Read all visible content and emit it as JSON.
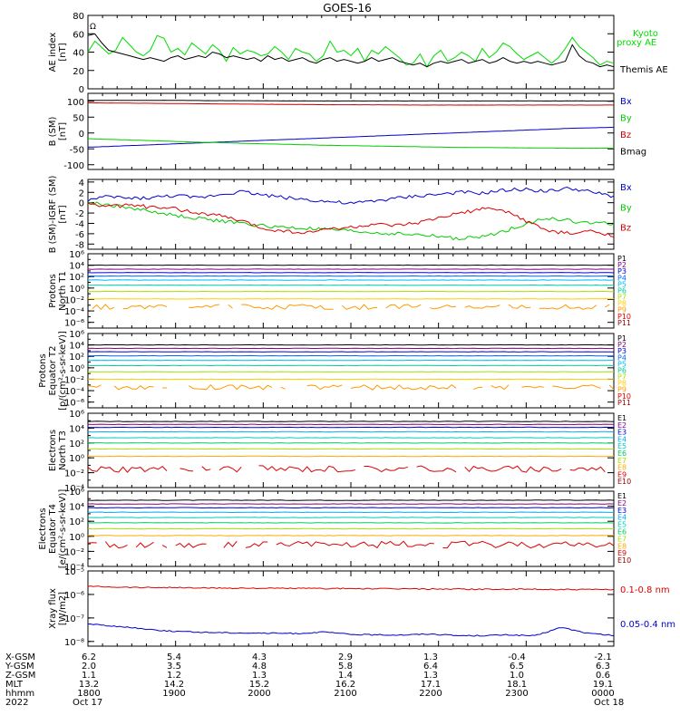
{
  "title": "GOES-16",
  "x_tick_labels": [
    "1800",
    "1900",
    "2000",
    "2100",
    "2200",
    "2300",
    "0000"
  ],
  "orbit_table": {
    "rows": [
      {
        "label": "X-GSM",
        "values": [
          "6.2",
          "5.4",
          "4.3",
          "2.9",
          "1.3",
          "-0.4",
          "-2.1"
        ]
      },
      {
        "label": "Y-GSM",
        "values": [
          "2.0",
          "3.5",
          "4.8",
          "5.8",
          "6.4",
          "6.5",
          "6.3"
        ]
      },
      {
        "label": "Z-GSM",
        "values": [
          "1.1",
          "1.2",
          "1.3",
          "1.4",
          "1.3",
          "1.0",
          "0.6"
        ]
      },
      {
        "label": "MLT",
        "values": [
          "13.2",
          "14.2",
          "15.2",
          "16.2",
          "17.1",
          "18.1",
          "19.1"
        ]
      },
      {
        "label": "hhmm",
        "values": [
          "1800",
          "1900",
          "2000",
          "2100",
          "2200",
          "2300",
          "0000"
        ]
      }
    ],
    "year": "2022",
    "start_date": "Oct 17",
    "end_date": "Oct 18"
  },
  "chart_data": [
    {
      "type": "line",
      "title": "GOES-16",
      "ylabel": "AE index [nT]",
      "ylim": [
        0,
        80
      ],
      "yticks": [
        "0",
        "20",
        "40",
        "60",
        "80"
      ],
      "extra_label": "Ω",
      "series": [
        {
          "name": "Kyoto proxy AE",
          "color": "#00dd00",
          "values": [
            40,
            52,
            45,
            38,
            42,
            56,
            48,
            40,
            36,
            42,
            58,
            55,
            40,
            44,
            37,
            50,
            44,
            38,
            48,
            42,
            30,
            45,
            38,
            42,
            40,
            36,
            38,
            46,
            40,
            32,
            44,
            40,
            38,
            30,
            36,
            52,
            40,
            42,
            36,
            44,
            30,
            42,
            38,
            46,
            40,
            34,
            26,
            28,
            38,
            24,
            36,
            42,
            30,
            34,
            40,
            36,
            30,
            44,
            34,
            40,
            50,
            46,
            38,
            32,
            36,
            40,
            34,
            28,
            34,
            44,
            56,
            46,
            40,
            34,
            26,
            30,
            28
          ]
        },
        {
          "name": "Themis AE",
          "color": "#000000",
          "values": [
            58,
            60,
            50,
            42,
            40,
            38,
            36,
            34,
            32,
            34,
            32,
            30,
            34,
            36,
            32,
            34,
            36,
            34,
            40,
            38,
            34,
            36,
            34,
            32,
            34,
            30,
            36,
            32,
            34,
            30,
            32,
            34,
            30,
            28,
            32,
            34,
            30,
            32,
            30,
            28,
            30,
            34,
            30,
            32,
            34,
            30,
            28,
            26,
            28,
            24,
            28,
            30,
            28,
            30,
            32,
            28,
            30,
            32,
            28,
            30,
            34,
            30,
            28,
            30,
            28,
            30,
            28,
            26,
            28,
            30,
            48,
            36,
            30,
            28,
            24,
            26,
            24
          ]
        }
      ]
    },
    {
      "type": "line",
      "ylabel": "B (SM) [nT]",
      "ylim": [
        -115,
        125
      ],
      "yticks": [
        "-100",
        "-50",
        "0",
        "50",
        "100"
      ],
      "series": [
        {
          "name": "Bx",
          "color": "#0000cc",
          "values": [
            -45,
            -40,
            -35,
            -30,
            -25,
            -20,
            -15,
            -10,
            -5,
            0,
            5,
            10,
            15,
            18
          ]
        },
        {
          "name": "By",
          "color": "#00cc00",
          "values": [
            -18,
            -22,
            -26,
            -30,
            -33,
            -36,
            -39,
            -41,
            -43,
            -45,
            -46,
            -47,
            -48,
            -48
          ]
        },
        {
          "name": "Bz",
          "color": "#cc0000",
          "values": [
            95,
            94,
            93,
            92,
            91,
            90,
            89,
            89,
            88,
            88,
            88,
            88,
            88,
            88
          ]
        },
        {
          "name": "Bmag",
          "color": "#000000",
          "values": [
            103,
            103,
            103,
            102,
            102,
            101,
            101,
            101,
            101,
            101,
            101,
            101,
            101,
            101
          ]
        }
      ]
    },
    {
      "type": "line",
      "ylabel": "B (SM)-IGRF (SM) [nT]",
      "ylim": [
        -9,
        4.5
      ],
      "yticks": [
        "-8",
        "-6",
        "-4",
        "-2",
        "0",
        "2",
        "4"
      ],
      "series": [
        {
          "name": "Bx",
          "color": "#0000cc",
          "values": [
            0.5,
            1.2,
            0.8,
            1.0,
            1.4,
            0.9,
            1.6,
            2.2,
            1.5,
            1.0,
            0.6,
            0.2,
            -0.2,
            0.3,
            0.8,
            1.3,
            1.6,
            2.0,
            1.8,
            2.4,
            2.6,
            2.2,
            2.8,
            2.0,
            1.2
          ]
        },
        {
          "name": "By",
          "color": "#00cc00",
          "values": [
            0.0,
            -0.5,
            -1.0,
            -1.8,
            -2.5,
            -3.0,
            -3.5,
            -4.0,
            -4.5,
            -4.8,
            -5.0,
            -5.2,
            -5.5,
            -5.8,
            -6.0,
            -6.2,
            -6.5,
            -7.0,
            -6.6,
            -5.5,
            -4.0,
            -3.0,
            -3.5,
            -4.0,
            -4.0
          ]
        },
        {
          "name": "Bz",
          "color": "#dd0000",
          "values": [
            -0.2,
            -0.8,
            -0.4,
            -1.0,
            -1.2,
            -2.0,
            -2.5,
            -3.5,
            -5.0,
            -5.5,
            -5.8,
            -5.0,
            -4.8,
            -4.2,
            -4.5,
            -4.0,
            -3.0,
            -2.0,
            -1.2,
            -1.5,
            -3.5,
            -5.5,
            -6.0,
            -5.5,
            -6.3
          ]
        }
      ]
    },
    {
      "type": "line",
      "ylabel": "Protons North T1",
      "log_scale": true,
      "ylim_exp": [
        -7,
        6
      ],
      "tick_exps": [
        -6,
        -4,
        -2,
        0,
        2,
        4,
        6
      ],
      "channels": [
        {
          "name": "P1",
          "color": "#000000",
          "log_value": 4.0
        },
        {
          "name": "P2",
          "color": "#880088",
          "log_value": 3.3
        },
        {
          "name": "P3",
          "color": "#0000cc",
          "log_value": 2.7
        },
        {
          "name": "P4",
          "color": "#0066ff",
          "log_value": 2.1
        },
        {
          "name": "P5",
          "color": "#00bbee",
          "log_value": 1.4
        },
        {
          "name": "P6",
          "color": "#00cc99",
          "log_value": 0.5
        },
        {
          "name": "P7",
          "color": "#aadd00",
          "log_value": -0.6
        },
        {
          "name": "P8",
          "color": "#ffcc00",
          "log_value": -1.9
        },
        {
          "name": "P9",
          "color": "#ff9900",
          "log_value": -3.3,
          "noisy": true
        },
        {
          "name": "P10",
          "color": "#dd0000",
          "log_value": null
        },
        {
          "name": "P11",
          "color": "#aa0000",
          "log_value": null
        }
      ]
    },
    {
      "type": "line",
      "ylabel": "Protons Equator T2 [p/(cm²-s-sr-keV)]",
      "log_scale": true,
      "ylim_exp": [
        -7,
        6
      ],
      "tick_exps": [
        -6,
        -4,
        -2,
        0,
        2,
        4,
        6
      ],
      "channels": [
        {
          "name": "P1",
          "color": "#000000",
          "log_value": 4.0
        },
        {
          "name": "P2",
          "color": "#880088",
          "log_value": 3.4
        },
        {
          "name": "P3",
          "color": "#0000cc",
          "log_value": 2.8
        },
        {
          "name": "P4",
          "color": "#0066ff",
          "log_value": 2.1
        },
        {
          "name": "P5",
          "color": "#00bbee",
          "log_value": 1.3
        },
        {
          "name": "P6",
          "color": "#00cc99",
          "log_value": 0.4
        },
        {
          "name": "P7",
          "color": "#aadd00",
          "log_value": -0.7
        },
        {
          "name": "P8",
          "color": "#ffcc00",
          "log_value": -2.0
        },
        {
          "name": "P9",
          "color": "#ff9900",
          "log_value": -3.4,
          "noisy": true
        },
        {
          "name": "P10",
          "color": "#dd0000",
          "log_value": null
        },
        {
          "name": "P11",
          "color": "#aa0000",
          "log_value": null
        }
      ]
    },
    {
      "type": "line",
      "ylabel": "Electrons North T3",
      "log_scale": true,
      "ylim_exp": [
        -4,
        6
      ],
      "tick_exps": [
        -4,
        -2,
        0,
        2,
        4,
        6
      ],
      "channels": [
        {
          "name": "E1",
          "color": "#000000",
          "log_value": 4.9
        },
        {
          "name": "E2",
          "color": "#880088",
          "log_value": 4.5
        },
        {
          "name": "E3",
          "color": "#0000cc",
          "log_value": 4.1
        },
        {
          "name": "E4",
          "color": "#00aaff",
          "log_value": 3.5
        },
        {
          "name": "E5",
          "color": "#00ccbb",
          "log_value": 2.7
        },
        {
          "name": "E6",
          "color": "#00cc66",
          "log_value": 2.0
        },
        {
          "name": "E7",
          "color": "#aadd00",
          "log_value": 1.2
        },
        {
          "name": "E8",
          "color": "#ffaa00",
          "log_value": 0.2
        },
        {
          "name": "E9",
          "color": "#dd0000",
          "log_value": -1.5,
          "noisy": true
        },
        {
          "name": "E10",
          "color": "#990000",
          "log_value": null
        }
      ]
    },
    {
      "type": "line",
      "ylabel": "Electrons Equator T4 [e/(cm²-s-sr-keV)]",
      "log_scale": true,
      "ylim_exp": [
        -4,
        6
      ],
      "tick_exps": [
        -4,
        -2,
        0,
        2,
        4,
        6
      ],
      "channels": [
        {
          "name": "E1",
          "color": "#000000",
          "log_value": 4.8
        },
        {
          "name": "E2",
          "color": "#880088",
          "log_value": 4.3
        },
        {
          "name": "E3",
          "color": "#0000cc",
          "log_value": 3.8
        },
        {
          "name": "E4",
          "color": "#00aaff",
          "log_value": 3.2
        },
        {
          "name": "E5",
          "color": "#00ccbb",
          "log_value": 2.5
        },
        {
          "name": "E6",
          "color": "#00cc66",
          "log_value": 1.8
        },
        {
          "name": "E7",
          "color": "#aadd00",
          "log_value": 1.0
        },
        {
          "name": "E8",
          "color": "#ffaa00",
          "log_value": 0.1
        },
        {
          "name": "E9",
          "color": "#dd0000",
          "log_value": -1.1,
          "noisy": true
        },
        {
          "name": "E10",
          "color": "#990000",
          "log_value": null
        }
      ]
    },
    {
      "type": "line",
      "ylabel": "Xray flux [W/m2]",
      "log_scale": true,
      "ylim_exp": [
        -8.2,
        -5
      ],
      "tick_exps": [
        -8,
        -7,
        -6,
        -5
      ],
      "series": [
        {
          "name": "0.1-0.8 nm",
          "color": "#dd0000",
          "log_values": [
            -5.65,
            -5.68,
            -5.7,
            -5.7,
            -5.72,
            -5.73,
            -5.73,
            -5.74,
            -5.74,
            -5.75,
            -5.75,
            -5.76,
            -5.76,
            -5.77,
            -5.77,
            -5.78,
            -5.78,
            -5.78,
            -5.79,
            -5.79,
            -5.8
          ]
        },
        {
          "name": "0.05-0.4 nm",
          "color": "#0000cc",
          "log_values": [
            -7.25,
            -7.35,
            -7.45,
            -7.55,
            -7.6,
            -7.62,
            -7.64,
            -7.65,
            -7.66,
            -7.6,
            -7.7,
            -7.72,
            -7.72,
            -7.68,
            -7.75,
            -7.75,
            -7.72,
            -7.76,
            -7.4,
            -7.65,
            -7.75
          ]
        }
      ]
    }
  ]
}
